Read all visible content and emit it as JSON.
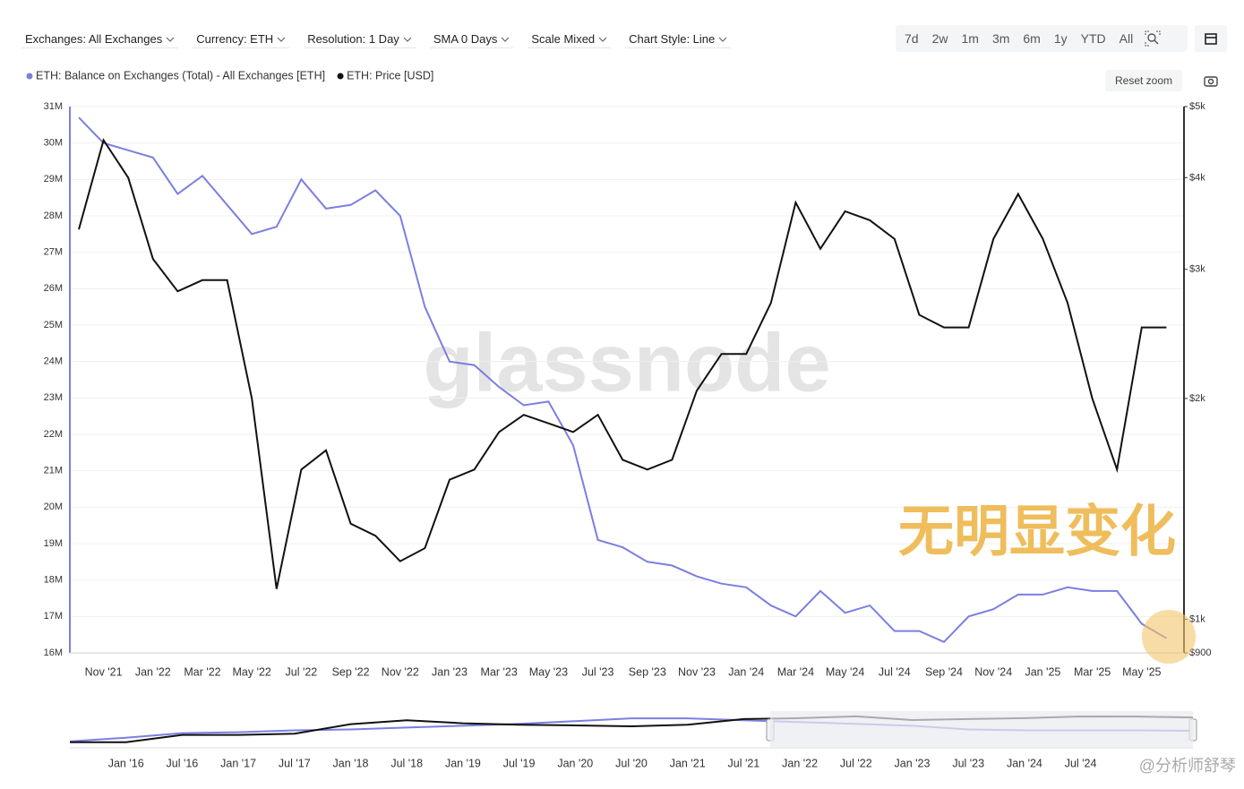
{
  "toolbar": {
    "filters": [
      "Exchanges: All Exchanges",
      "Currency: ETH",
      "Resolution: 1 Day",
      "SMA 0 Days",
      "Scale Mixed",
      "Chart Style: Line"
    ],
    "ranges": [
      "7d",
      "2w",
      "1m",
      "3m",
      "6m",
      "1y",
      "YTD",
      "All"
    ]
  },
  "reset_zoom": "Reset zoom",
  "watermark": "glassnode",
  "annotation": "无明显变化",
  "credit": "@分析师舒琴",
  "chart_data": {
    "type": "line",
    "categories": [
      null,
      "Nov '21",
      null,
      "Jan '22",
      null,
      "Mar '22",
      null,
      "May '22",
      null,
      "Jul '22",
      null,
      "Sep '22",
      null,
      "Nov '22",
      null,
      "Jan '23",
      null,
      "Mar '23",
      null,
      "May '23",
      null,
      "Jul '23",
      null,
      "Sep '23",
      null,
      "Nov '23",
      null,
      "Jan '24",
      null,
      "Mar '24",
      null,
      "May '24",
      null,
      "Jul '24",
      null,
      "Sep '24",
      null,
      "Nov '24",
      null,
      "Jan '25",
      null,
      "Mar '25",
      null,
      "May '25",
      null
    ],
    "series": [
      {
        "name": "ETH: Balance on Exchanges (Total) - All Exchanges [ETH]",
        "color": "#7b7fe0",
        "axis": "y",
        "values": [
          30.7,
          30.0,
          29.8,
          29.6,
          28.6,
          29.1,
          28.3,
          27.5,
          27.7,
          29.0,
          28.2,
          28.3,
          28.7,
          28.0,
          25.5,
          24.0,
          23.9,
          23.3,
          22.8,
          22.9,
          21.7,
          19.1,
          18.9,
          18.5,
          18.4,
          18.1,
          17.9,
          17.8,
          17.3,
          17.0,
          17.7,
          17.1,
          17.3,
          16.6,
          16.6,
          16.3,
          17.0,
          17.2,
          17.6,
          17.6,
          17.8,
          17.7,
          17.7,
          16.8,
          16.4
        ]
      },
      {
        "name": "ETH: Price [USD]",
        "color": "#111111",
        "axis": "y2",
        "values": [
          3400,
          4500,
          4000,
          3100,
          2800,
          2900,
          2900,
          2000,
          1100,
          1600,
          1700,
          1350,
          1300,
          1200,
          1250,
          1550,
          1600,
          1800,
          1900,
          1850,
          1800,
          1900,
          1650,
          1600,
          1650,
          2050,
          2300,
          2300,
          2700,
          3700,
          3200,
          3600,
          3500,
          3300,
          2600,
          2500,
          2500,
          3300,
          3800,
          3300,
          2700,
          2000,
          1600,
          2500,
          2500
        ]
      }
    ],
    "ylim": [
      16,
      31
    ],
    "yticks": [
      {
        "value": 16,
        "label": "16M"
      },
      {
        "value": 17,
        "label": "17M"
      },
      {
        "value": 18,
        "label": "18M"
      },
      {
        "value": 19,
        "label": "19M"
      },
      {
        "value": 20,
        "label": "20M"
      },
      {
        "value": 21,
        "label": "21M"
      },
      {
        "value": 22,
        "label": "22M"
      },
      {
        "value": 23,
        "label": "23M"
      },
      {
        "value": 24,
        "label": "24M"
      },
      {
        "value": 25,
        "label": "25M"
      },
      {
        "value": 26,
        "label": "26M"
      },
      {
        "value": 27,
        "label": "27M"
      },
      {
        "value": 28,
        "label": "28M"
      },
      {
        "value": 29,
        "label": "29M"
      },
      {
        "value": 30,
        "label": "30M"
      },
      {
        "value": 31,
        "label": "31M"
      }
    ],
    "y2lim": [
      900,
      5000
    ],
    "y2ticks": [
      {
        "value": 900,
        "label": "$900"
      },
      {
        "value": 1000,
        "label": "$1k"
      },
      {
        "value": 2000,
        "label": "$2k"
      },
      {
        "value": 3000,
        "label": "$3k"
      },
      {
        "value": 4000,
        "label": "$4k"
      },
      {
        "value": 5000,
        "label": "$5k"
      }
    ],
    "y2log": true,
    "grid": true,
    "legend": "top-left",
    "navigator": {
      "categories": [
        null,
        "Jan '16",
        "Jul '16",
        "Jan '17",
        "Jul '17",
        "Jan '18",
        "Jul '18",
        "Jan '19",
        "Jul '19",
        "Jan '20",
        "Jul '20",
        "Jan '21",
        "Jul '21",
        "Jan '22",
        "Jul '22",
        "Jan '23",
        "Jul '23",
        "Jan '24",
        "Jul '24",
        null,
        null
      ],
      "series": [
        {
          "color": "#7b7fe0",
          "axis": "y",
          "values": [
            5,
            9,
            14,
            15,
            17,
            18,
            20,
            22,
            24,
            27,
            30,
            30,
            28,
            26,
            24,
            22,
            18,
            17,
            17,
            17,
            16.5
          ]
        },
        {
          "color": "#111111",
          "axis": "y2",
          "values": [
            1,
            1,
            10,
            10,
            15,
            300,
            1000,
            400,
            250,
            200,
            150,
            250,
            1500,
            2000,
            3500,
            1100,
            1500,
            2000,
            3400,
            3300,
            2500
          ]
        }
      ],
      "ylim": [
        0,
        35
      ],
      "y2lim": [
        0.3,
        8000
      ]
    }
  }
}
